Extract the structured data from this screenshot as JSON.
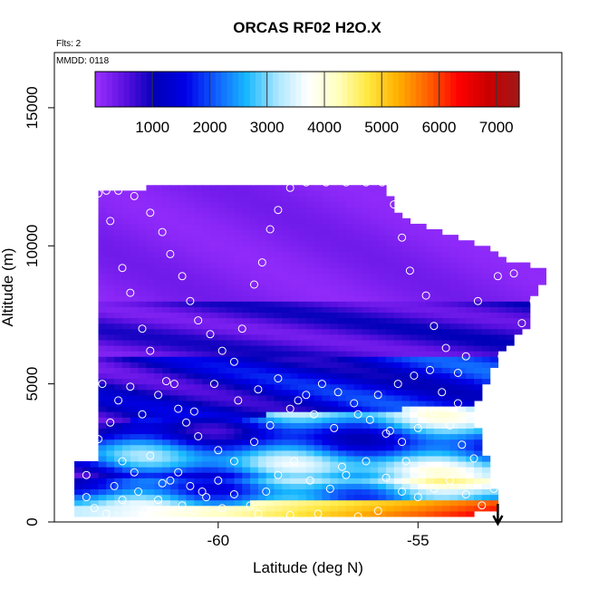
{
  "chart_data": {
    "type": "heatmap",
    "title": "ORCAS RF02 H2O.X",
    "flights_note": "Flts: 2",
    "date_note": "MMDD: 0118",
    "xlabel": "Latitude (deg N)",
    "ylabel": "Altitude (m)",
    "xlim": [
      -64.1,
      -51.4
    ],
    "ylim": [
      0,
      17000
    ],
    "x_ticks": [
      -60,
      -55
    ],
    "x_tick_labels": [
      "-60",
      "-55"
    ],
    "y_ticks": [
      0,
      5000,
      10000,
      15000
    ],
    "y_tick_labels": [
      "0",
      "5000",
      "10000",
      "15000"
    ],
    "colorbar": {
      "range": [
        0,
        7400
      ],
      "ticks": [
        1000,
        2000,
        3000,
        4000,
        5000,
        6000,
        7000
      ],
      "tick_labels": [
        "1000",
        "2000",
        "3000",
        "4000",
        "5000",
        "6000",
        "7000"
      ],
      "stops": [
        "#9b30ff",
        "#5a10e0",
        "#0000b8",
        "#0000e8",
        "#1060ff",
        "#18b8ff",
        "#a8e6ff",
        "#ffffff",
        "#ffffc0",
        "#ffe840",
        "#ffb000",
        "#ff6000",
        "#ff0000",
        "#c80000",
        "#a01818"
      ]
    },
    "profile_envelope": [
      [
        -63.0,
        2200
      ],
      [
        -63.0,
        12000
      ],
      [
        -60.5,
        12200
      ],
      [
        -56.8,
        12300
      ],
      [
        -55.9,
        12300
      ],
      [
        -55.4,
        11000
      ],
      [
        -54.1,
        10400
      ],
      [
        -53.3,
        10000
      ],
      [
        -52.8,
        9500
      ],
      [
        -51.7,
        9100
      ],
      [
        -52.2,
        8000
      ],
      [
        -52.3,
        7000
      ],
      [
        -52.9,
        6100
      ],
      [
        -53.4,
        4800
      ],
      [
        -53.6,
        3800
      ],
      [
        -53.2,
        2000
      ],
      [
        -53.0,
        350
      ],
      [
        -54.1,
        250
      ],
      [
        -63.5,
        250
      ],
      [
        -63.5,
        2200
      ]
    ],
    "observations": [
      [
        -63.0,
        11900
      ],
      [
        -62.8,
        12000
      ],
      [
        -62.5,
        12000
      ],
      [
        -62.1,
        11800
      ],
      [
        -61.7,
        11200
      ],
      [
        -61.4,
        10500
      ],
      [
        -61.2,
        9700
      ],
      [
        -60.9,
        8900
      ],
      [
        -60.7,
        8000
      ],
      [
        -60.5,
        7300
      ],
      [
        -60.2,
        6800
      ],
      [
        -59.9,
        6200
      ],
      [
        -59.6,
        5800
      ],
      [
        -59.4,
        7000
      ],
      [
        -59.1,
        8600
      ],
      [
        -58.9,
        9400
      ],
      [
        -58.7,
        10600
      ],
      [
        -58.5,
        11300
      ],
      [
        -58.2,
        12100
      ],
      [
        -57.8,
        12300
      ],
      [
        -57.3,
        12300
      ],
      [
        -56.8,
        12300
      ],
      [
        -56.3,
        12300
      ],
      [
        -55.9,
        12300
      ],
      [
        -55.6,
        11500
      ],
      [
        -55.4,
        10300
      ],
      [
        -55.2,
        9100
      ],
      [
        -54.8,
        8200
      ],
      [
        -54.6,
        7100
      ],
      [
        -54.3,
        6300
      ],
      [
        -54.0,
        5400
      ],
      [
        -53.8,
        6000
      ],
      [
        -53.5,
        8000
      ],
      [
        -53.0,
        8900
      ],
      [
        -52.6,
        9000
      ],
      [
        -52.1,
        8000
      ],
      [
        -52.4,
        7200
      ],
      [
        -52.9,
        6000
      ],
      [
        -62.7,
        10900
      ],
      [
        -62.4,
        9200
      ],
      [
        -62.2,
        8300
      ],
      [
        -61.9,
        7000
      ],
      [
        -61.7,
        6200
      ],
      [
        -61.3,
        5100
      ],
      [
        -61.0,
        4100
      ],
      [
        -60.8,
        3600
      ],
      [
        -60.5,
        3100
      ],
      [
        -60.0,
        2600
      ],
      [
        -59.6,
        2200
      ],
      [
        -59.1,
        2900
      ],
      [
        -58.7,
        3500
      ],
      [
        -58.2,
        4100
      ],
      [
        -57.8,
        4600
      ],
      [
        -57.4,
        5000
      ],
      [
        -57.0,
        4700
      ],
      [
        -56.6,
        4300
      ],
      [
        -56.2,
        3700
      ],
      [
        -55.8,
        3200
      ],
      [
        -55.4,
        2900
      ],
      [
        -55.0,
        3400
      ],
      [
        -54.6,
        4000
      ],
      [
        -54.2,
        3500
      ],
      [
        -53.9,
        2800
      ],
      [
        -53.6,
        2300
      ],
      [
        -53.4,
        3900
      ],
      [
        -63.0,
        3000
      ],
      [
        -62.7,
        3600
      ],
      [
        -62.4,
        2200
      ],
      [
        -62.1,
        1800
      ],
      [
        -61.7,
        2400
      ],
      [
        -61.4,
        1400
      ],
      [
        -61.0,
        1800
      ],
      [
        -60.7,
        1300
      ],
      [
        -60.3,
        900
      ],
      [
        -60.0,
        1500
      ],
      [
        -59.6,
        1000
      ],
      [
        -59.2,
        600
      ],
      [
        -58.8,
        1100
      ],
      [
        -58.5,
        1700
      ],
      [
        -58.1,
        2200
      ],
      [
        -57.7,
        1500
      ],
      [
        -57.2,
        1200
      ],
      [
        -56.8,
        1700
      ],
      [
        -56.3,
        2200
      ],
      [
        -55.8,
        1600
      ],
      [
        -55.4,
        1100
      ],
      [
        -55.0,
        900
      ],
      [
        -54.6,
        1200
      ],
      [
        -54.2,
        1500
      ],
      [
        -53.8,
        1000
      ],
      [
        -53.4,
        600
      ],
      [
        -53.1,
        1200
      ],
      [
        -53.0,
        1900
      ],
      [
        -63.3,
        1700
      ],
      [
        -63.3,
        900
      ],
      [
        -63.1,
        500
      ],
      [
        -62.8,
        300
      ],
      [
        -62.6,
        1300
      ],
      [
        -62.4,
        800
      ],
      [
        -62.0,
        1100
      ],
      [
        -61.8,
        400
      ],
      [
        -61.5,
        800
      ],
      [
        -61.2,
        1500
      ],
      [
        -60.9,
        600
      ],
      [
        -60.6,
        400
      ],
      [
        -60.4,
        1100
      ],
      [
        -56.0,
        400
      ],
      [
        -56.5,
        200
      ],
      [
        -57.5,
        300
      ],
      [
        -58.2,
        250
      ],
      [
        -59.0,
        300
      ],
      [
        -59.9,
        500
      ],
      [
        -62.9,
        5000
      ],
      [
        -62.5,
        4400
      ],
      [
        -62.2,
        4900
      ],
      [
        -61.9,
        3900
      ],
      [
        -61.5,
        4600
      ],
      [
        -61.1,
        5000
      ],
      [
        -60.6,
        4000
      ],
      [
        -60.1,
        5000
      ],
      [
        -59.5,
        4400
      ],
      [
        -59.0,
        4800
      ],
      [
        -58.5,
        5200
      ],
      [
        -58.0,
        4400
      ],
      [
        -57.6,
        3900
      ],
      [
        -57.1,
        3400
      ],
      [
        -56.5,
        3900
      ],
      [
        -56.0,
        4600
      ],
      [
        -55.5,
        5000
      ],
      [
        -55.1,
        5300
      ],
      [
        -54.7,
        5500
      ],
      [
        -54.4,
        4700
      ],
      [
        -54.0,
        4300
      ],
      [
        -55.7,
        3300
      ],
      [
        -56.9,
        2000
      ],
      [
        -55.3,
        2200
      ],
      [
        -54.9,
        1900
      ]
    ],
    "arrow_marker": {
      "x": -53.0,
      "direction": "down"
    }
  }
}
